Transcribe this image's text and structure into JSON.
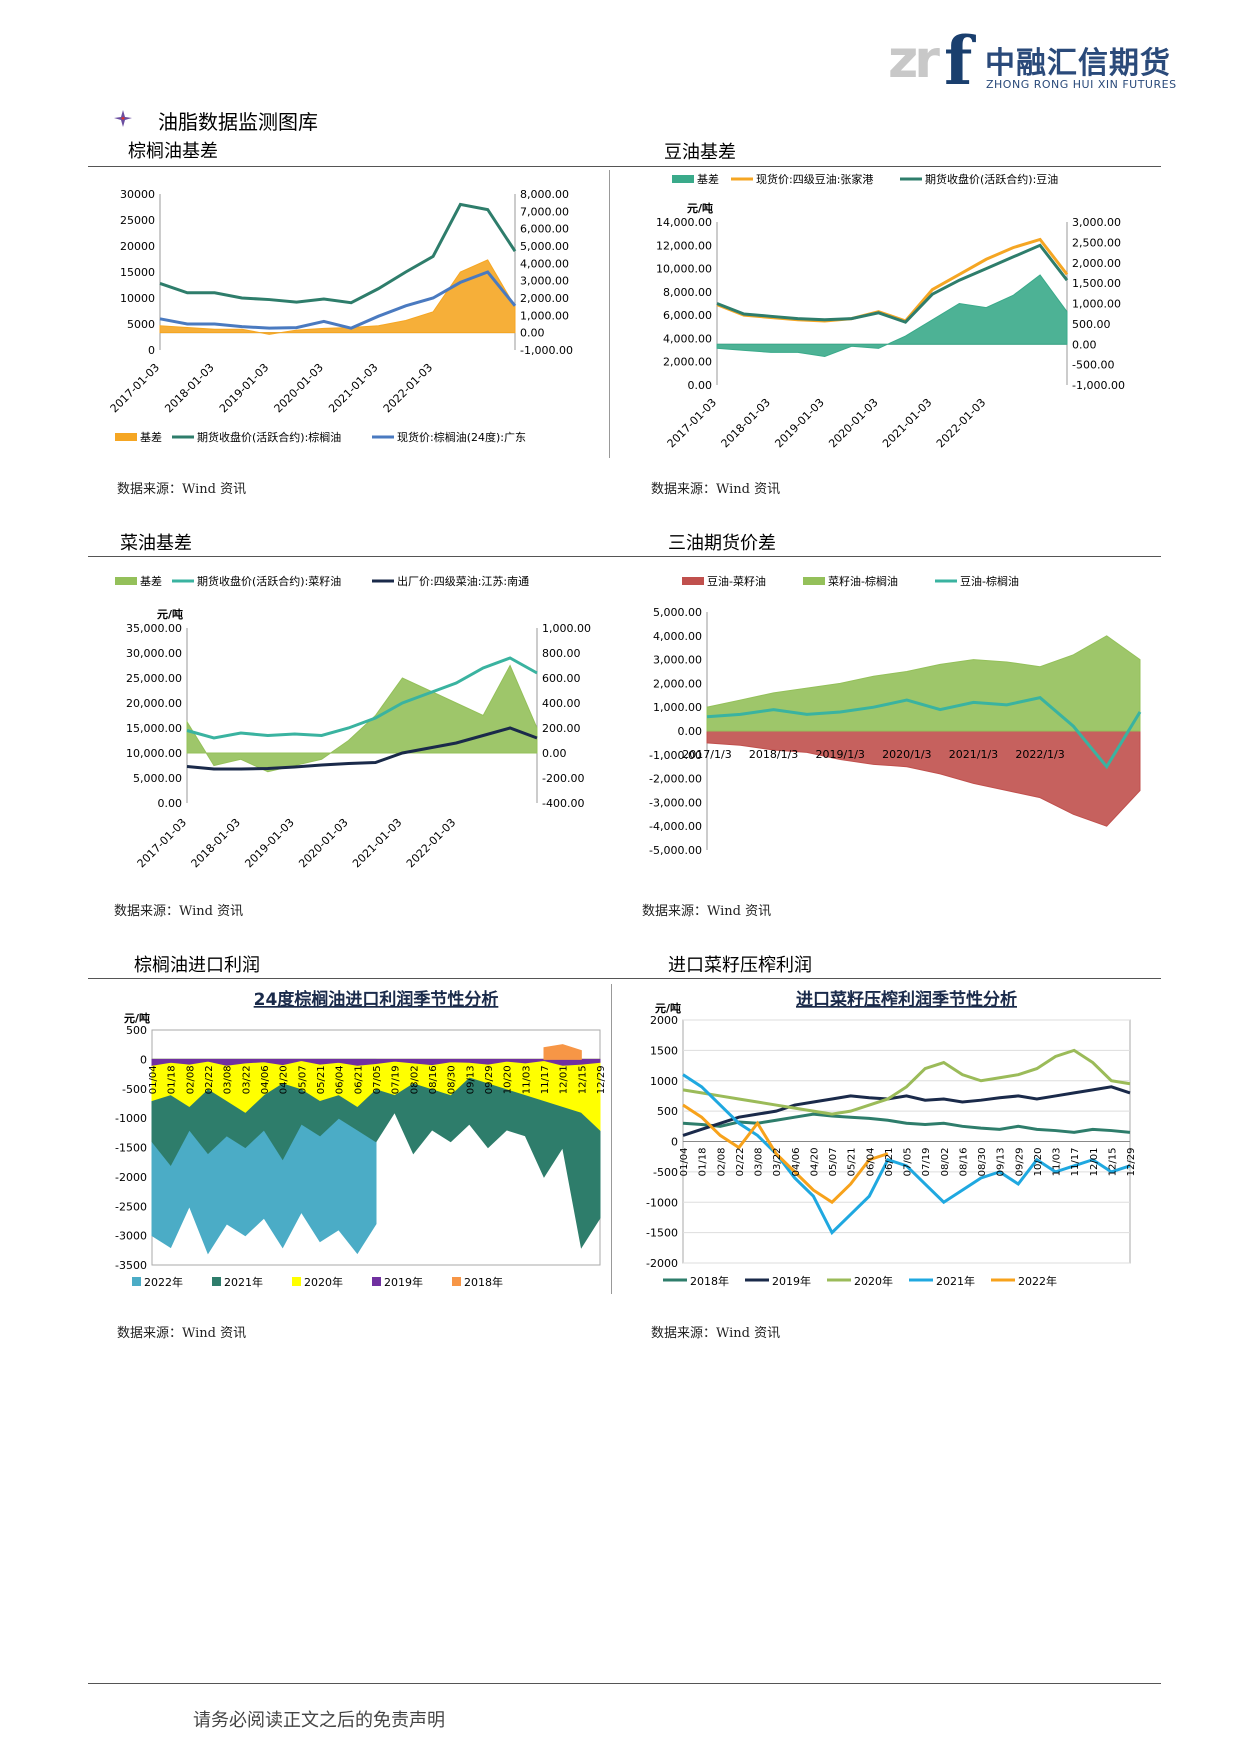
{
  "header": {
    "logo_mark": "zrf",
    "logo_cn": "中融汇信期货",
    "logo_en": "ZHONG RONG HUI XIN FUTURES",
    "page_title": "油脂数据监测图库"
  },
  "footer": {
    "disclaimer": "请务必阅读正文之后的免责声明"
  },
  "charts": [
    {
      "title": "棕榈油基差",
      "source": "数据来源：Wind 资讯"
    },
    {
      "title": "豆油基差",
      "source": "数据来源：Wind 资讯"
    },
    {
      "title": "菜油基差",
      "source": "数据来源：Wind 资讯"
    },
    {
      "title": "三油期货价差",
      "source": "数据来源：Wind 资讯"
    },
    {
      "title": "棕榈油进口利润",
      "source": "数据来源：Wind 资讯"
    },
    {
      "title": "进口菜籽压榨利润",
      "source": "数据来源：Wind 资讯"
    }
  ],
  "chart_data": [
    {
      "type": "line",
      "x": [
        "2017-01-03",
        "2017-07-03",
        "2018-01-03",
        "2018-07-03",
        "2019-01-03",
        "2019-07-03",
        "2020-01-03",
        "2020-07-03",
        "2021-01-03",
        "2021-07-03",
        "2022-01-03",
        "2022-04-01",
        "2022-06-15",
        "2022-08-01"
      ],
      "xticks": [
        "2017-01-03",
        "2018-01-03",
        "2019-01-03",
        "2020-01-03",
        "2021-01-03",
        "2022-01-03"
      ],
      "ylim": [
        0,
        30000
      ],
      "yticks": [
        0,
        5000,
        10000,
        15000,
        20000,
        25000,
        30000
      ],
      "y2lim": [
        -1000,
        8000
      ],
      "y2ticks": [
        "-1,000.00",
        "0.00",
        "1,000.00",
        "2,000.00",
        "3,000.00",
        "4,000.00",
        "5,000.00",
        "6,000.00",
        "7,000.00",
        "8,000.00"
      ],
      "series": [
        {
          "name": "基差",
          "kind": "area",
          "axis": "right",
          "color": "#f5a623",
          "values": [
            400,
            300,
            200,
            200,
            -100,
            150,
            250,
            300,
            400,
            700,
            1200,
            3500,
            4200,
            1500
          ]
        },
        {
          "name": "期货收盘价(活跃合约):棕榈油",
          "kind": "line",
          "axis": "left",
          "color": "#2e7d6b",
          "values": [
            12800,
            11000,
            11000,
            10000,
            9700,
            9200,
            9800,
            9100,
            11800,
            15000,
            18000,
            28000,
            27000,
            19000
          ]
        },
        {
          "name": "现货价:棕榈油(24度):广东",
          "kind": "line",
          "axis": "left",
          "color": "#4a7ac0",
          "values": [
            6000,
            5000,
            5000,
            4500,
            4200,
            4300,
            5500,
            4200,
            6500,
            8500,
            10000,
            13000,
            15000,
            8500
          ]
        }
      ]
    },
    {
      "type": "line",
      "yunit": "元/吨",
      "x": [
        "2017-01-03",
        "2017-07-03",
        "2018-01-03",
        "2018-07-03",
        "2019-01-03",
        "2019-07-03",
        "2020-01-03",
        "2020-07-03",
        "2021-01-03",
        "2021-07-03",
        "2022-01-03",
        "2022-04-01",
        "2022-06-15",
        "2022-08-01"
      ],
      "xticks": [
        "2017-01-03",
        "2018-01-03",
        "2019-01-03",
        "2020-01-03",
        "2021-01-03",
        "2022-01-03"
      ],
      "ylim": [
        0,
        14000
      ],
      "yticks": [
        "0.00",
        "2,000.00",
        "4,000.00",
        "6,000.00",
        "8,000.00",
        "10,000.00",
        "12,000.00",
        "14,000.00"
      ],
      "y2lim": [
        -1000,
        3000
      ],
      "y2ticks": [
        "-1,000.00",
        "-500.00",
        "0.00",
        "500.00",
        "1,000.00",
        "1,500.00",
        "2,000.00",
        "2,500.00",
        "3,000.00"
      ],
      "series": [
        {
          "name": "基差",
          "kind": "area",
          "axis": "right",
          "color": "#3aaa8a",
          "values": [
            -100,
            -150,
            -200,
            -200,
            -300,
            -50,
            -100,
            200,
            600,
            1000,
            900,
            1200,
            1700,
            800
          ]
        },
        {
          "name": "现货价:四级豆油:张家港",
          "kind": "line",
          "axis": "left",
          "color": "#f5a623",
          "values": [
            6900,
            6000,
            5800,
            5600,
            5500,
            5700,
            6300,
            5500,
            8200,
            9500,
            10800,
            11800,
            12500,
            9500
          ]
        },
        {
          "name": "期货收盘价(活跃合约):豆油",
          "kind": "line",
          "axis": "left",
          "color": "#2e7d6b",
          "values": [
            7000,
            6100,
            5900,
            5700,
            5600,
            5700,
            6200,
            5400,
            7800,
            9000,
            10000,
            11000,
            12000,
            9000
          ]
        }
      ]
    },
    {
      "type": "line",
      "yunit": "元/吨",
      "x": [
        "2017-01-03",
        "2017-07-03",
        "2018-01-03",
        "2018-07-03",
        "2019-01-03",
        "2019-07-03",
        "2020-01-03",
        "2020-07-03",
        "2021-01-03",
        "2021-07-03",
        "2022-01-03",
        "2022-04-01",
        "2022-06-15",
        "2022-08-01"
      ],
      "xticks": [
        "2017-01-03",
        "2018-01-03",
        "2019-01-03",
        "2020-01-03",
        "2021-01-03",
        "2022-01-03"
      ],
      "ylim": [
        0,
        35000
      ],
      "yticks": [
        "0.00",
        "5,000.00",
        "10,000.00",
        "15,000.00",
        "20,000.00",
        "25,000.00",
        "30,000.00",
        "35,000.00"
      ],
      "y2lim": [
        -400,
        1000
      ],
      "y2ticks": [
        "-400.00",
        "-200.00",
        "0.00",
        "200.00",
        "400.00",
        "600.00",
        "800.00",
        "1,000.00"
      ],
      "series": [
        {
          "name": "基差",
          "kind": "area",
          "axis": "right",
          "color": "#94c05a",
          "values": [
            250,
            -100,
            -50,
            -150,
            -100,
            -50,
            100,
            300,
            600,
            500,
            400,
            300,
            700,
            200
          ]
        },
        {
          "name": "期货收盘价(活跃合约):菜籽油",
          "kind": "line",
          "axis": "left",
          "color": "#3ab3a0",
          "values": [
            14500,
            13000,
            14000,
            13500,
            13800,
            13500,
            15000,
            17000,
            20000,
            22000,
            24000,
            27000,
            29000,
            26000
          ]
        },
        {
          "name": "出厂价:四级菜油:江苏:南通",
          "kind": "line",
          "axis": "left",
          "color": "#1a2a4a",
          "values": [
            7300,
            6800,
            6800,
            6900,
            7200,
            7600,
            7900,
            8100,
            10000,
            11000,
            12000,
            13500,
            15000,
            13000
          ]
        }
      ]
    },
    {
      "type": "area",
      "x": [
        "2017/1/3",
        "2017/7/3",
        "2018/1/3",
        "2018/7/3",
        "2019/1/3",
        "2019/7/3",
        "2020/1/3",
        "2020/7/3",
        "2021/1/3",
        "2021/7/3",
        "2022/1/3",
        "2022/4/1",
        "2022/6/15",
        "2022/8/1"
      ],
      "xticks": [
        "2017/1/3",
        "2018/1/3",
        "2019/1/3",
        "2020/1/3",
        "2021/1/3",
        "2022/1/3"
      ],
      "ylim": [
        -5000,
        5000
      ],
      "yticks": [
        "-5,000.00",
        "-4,000.00",
        "-3,000.00",
        "-2,000.00",
        "-1,000.00",
        "0.00",
        "1,000.00",
        "2,000.00",
        "3,000.00",
        "4,000.00",
        "5,000.00"
      ],
      "series": [
        {
          "name": "豆油-菜籽油",
          "kind": "area",
          "color": "#c0504d",
          "values": [
            -500,
            -600,
            -800,
            -900,
            -1200,
            -1400,
            -1500,
            -1800,
            -2200,
            -2500,
            -2800,
            -3500,
            -4000,
            -2500
          ]
        },
        {
          "name": "菜籽油-棕榈油",
          "kind": "area",
          "color": "#94c05a",
          "values": [
            1000,
            1300,
            1600,
            1800,
            2000,
            2300,
            2500,
            2800,
            3000,
            2900,
            2700,
            3200,
            4000,
            3000
          ]
        },
        {
          "name": "豆油-棕榈油",
          "kind": "line",
          "color": "#3ab3a0",
          "values": [
            600,
            700,
            900,
            700,
            800,
            1000,
            1300,
            900,
            1200,
            1100,
            1400,
            200,
            -1500,
            800
          ]
        }
      ]
    },
    {
      "type": "area",
      "title": "24度棕榈油进口利润季节性分析",
      "yunit": "元/吨",
      "x": [
        "01/04",
        "01/18",
        "02/08",
        "02/22",
        "03/08",
        "03/22",
        "04/06",
        "04/20",
        "05/07",
        "05/21",
        "06/04",
        "06/21",
        "07/05",
        "07/19",
        "08/02",
        "08/16",
        "08/30",
        "09/13",
        "09/29",
        "10/20",
        "11/03",
        "11/17",
        "12/01",
        "12/15",
        "12/29"
      ],
      "ylim": [
        -3500,
        500
      ],
      "yticks": [
        500,
        0,
        -500,
        -1000,
        -1500,
        -2000,
        -2500,
        -3000,
        -3500
      ],
      "series": [
        {
          "name": "2022年",
          "color": "#4bacc6",
          "values": [
            -3000,
            -3200,
            -2500,
            -3300,
            -2800,
            -3000,
            -2700,
            -3200,
            -2600,
            -3100,
            -2900,
            -3300,
            -2800,
            null,
            null,
            null,
            null,
            null,
            null,
            null,
            null,
            null,
            null,
            null,
            null
          ]
        },
        {
          "name": "2021年",
          "color": "#2e7d6b",
          "values": [
            -1400,
            -1800,
            -1200,
            -1600,
            -1300,
            -1500,
            -1200,
            -1700,
            -1100,
            -1300,
            -1000,
            -1200,
            -1400,
            -900,
            -1600,
            -1200,
            -1400,
            -1100,
            -1500,
            -1200,
            -1300,
            -2000,
            -1500,
            -3200,
            -2700
          ]
        },
        {
          "name": "2020年",
          "color": "#ffff00",
          "values": [
            -700,
            -600,
            -800,
            -500,
            -700,
            -900,
            -600,
            -400,
            -500,
            -700,
            -600,
            -800,
            -500,
            -600,
            -400,
            -500,
            -600,
            -300,
            -400,
            -500,
            -600,
            -700,
            -800,
            -900,
            -1200
          ]
        },
        {
          "name": "2019年",
          "color": "#7030a0",
          "values": [
            -100,
            -50,
            -80,
            -30,
            -100,
            -60,
            -40,
            -90,
            -20,
            -80,
            -50,
            -100,
            -70,
            -30,
            -60,
            -90,
            -40,
            -50,
            -80,
            -30,
            -60,
            -20,
            -100,
            -80,
            -50
          ]
        },
        {
          "name": "2018年",
          "color": "#f79646",
          "values": [
            null,
            null,
            null,
            null,
            null,
            null,
            null,
            null,
            null,
            null,
            null,
            null,
            null,
            null,
            null,
            null,
            null,
            null,
            null,
            null,
            null,
            200,
            250,
            150,
            null
          ]
        }
      ]
    },
    {
      "type": "line",
      "title": "进口菜籽压榨利润季节性分析",
      "yunit": "元/吨",
      "x": [
        "01/04",
        "01/18",
        "02/08",
        "02/22",
        "03/08",
        "03/22",
        "04/06",
        "04/20",
        "05/07",
        "05/21",
        "06/04",
        "06/21",
        "07/05",
        "07/19",
        "08/02",
        "08/16",
        "08/30",
        "09/13",
        "09/29",
        "10/20",
        "11/03",
        "11/17",
        "12/01",
        "12/15",
        "12/29"
      ],
      "ylim": [
        -2000,
        2000
      ],
      "yticks": [
        2000,
        1500,
        1000,
        500,
        0,
        -500,
        -1000,
        -1500,
        -2000
      ],
      "series": [
        {
          "name": "2018年",
          "color": "#2e7d6b",
          "values": [
            300,
            280,
            250,
            320,
            300,
            350,
            400,
            450,
            420,
            400,
            380,
            350,
            300,
            280,
            300,
            250,
            220,
            200,
            250,
            200,
            180,
            150,
            200,
            180,
            150
          ]
        },
        {
          "name": "2019年",
          "color": "#1a2a4a",
          "values": [
            100,
            200,
            300,
            400,
            450,
            500,
            600,
            650,
            700,
            750,
            720,
            700,
            750,
            680,
            700,
            650,
            680,
            720,
            750,
            700,
            750,
            800,
            850,
            900,
            800
          ]
        },
        {
          "name": "2020年",
          "color": "#9bbb59",
          "values": [
            850,
            800,
            750,
            700,
            650,
            600,
            550,
            500,
            450,
            500,
            600,
            700,
            900,
            1200,
            1300,
            1100,
            1000,
            1050,
            1100,
            1200,
            1400,
            1500,
            1300,
            1000,
            950
          ]
        },
        {
          "name": "2021年",
          "color": "#1fa8e0",
          "values": [
            1100,
            900,
            600,
            300,
            100,
            -200,
            -600,
            -900,
            -1500,
            -1200,
            -900,
            -300,
            -400,
            -700,
            -1000,
            -800,
            -600,
            -500,
            -700,
            -300,
            -500,
            -400,
            -300,
            -500,
            -400
          ]
        },
        {
          "name": "2022年",
          "color": "#f7a21b",
          "values": [
            600,
            400,
            100,
            -100,
            300,
            -200,
            -500,
            -800,
            -1000,
            -700,
            -300,
            -200,
            null,
            null,
            null,
            null,
            null,
            null,
            null,
            null,
            null,
            null,
            null,
            null,
            null
          ]
        }
      ]
    }
  ]
}
